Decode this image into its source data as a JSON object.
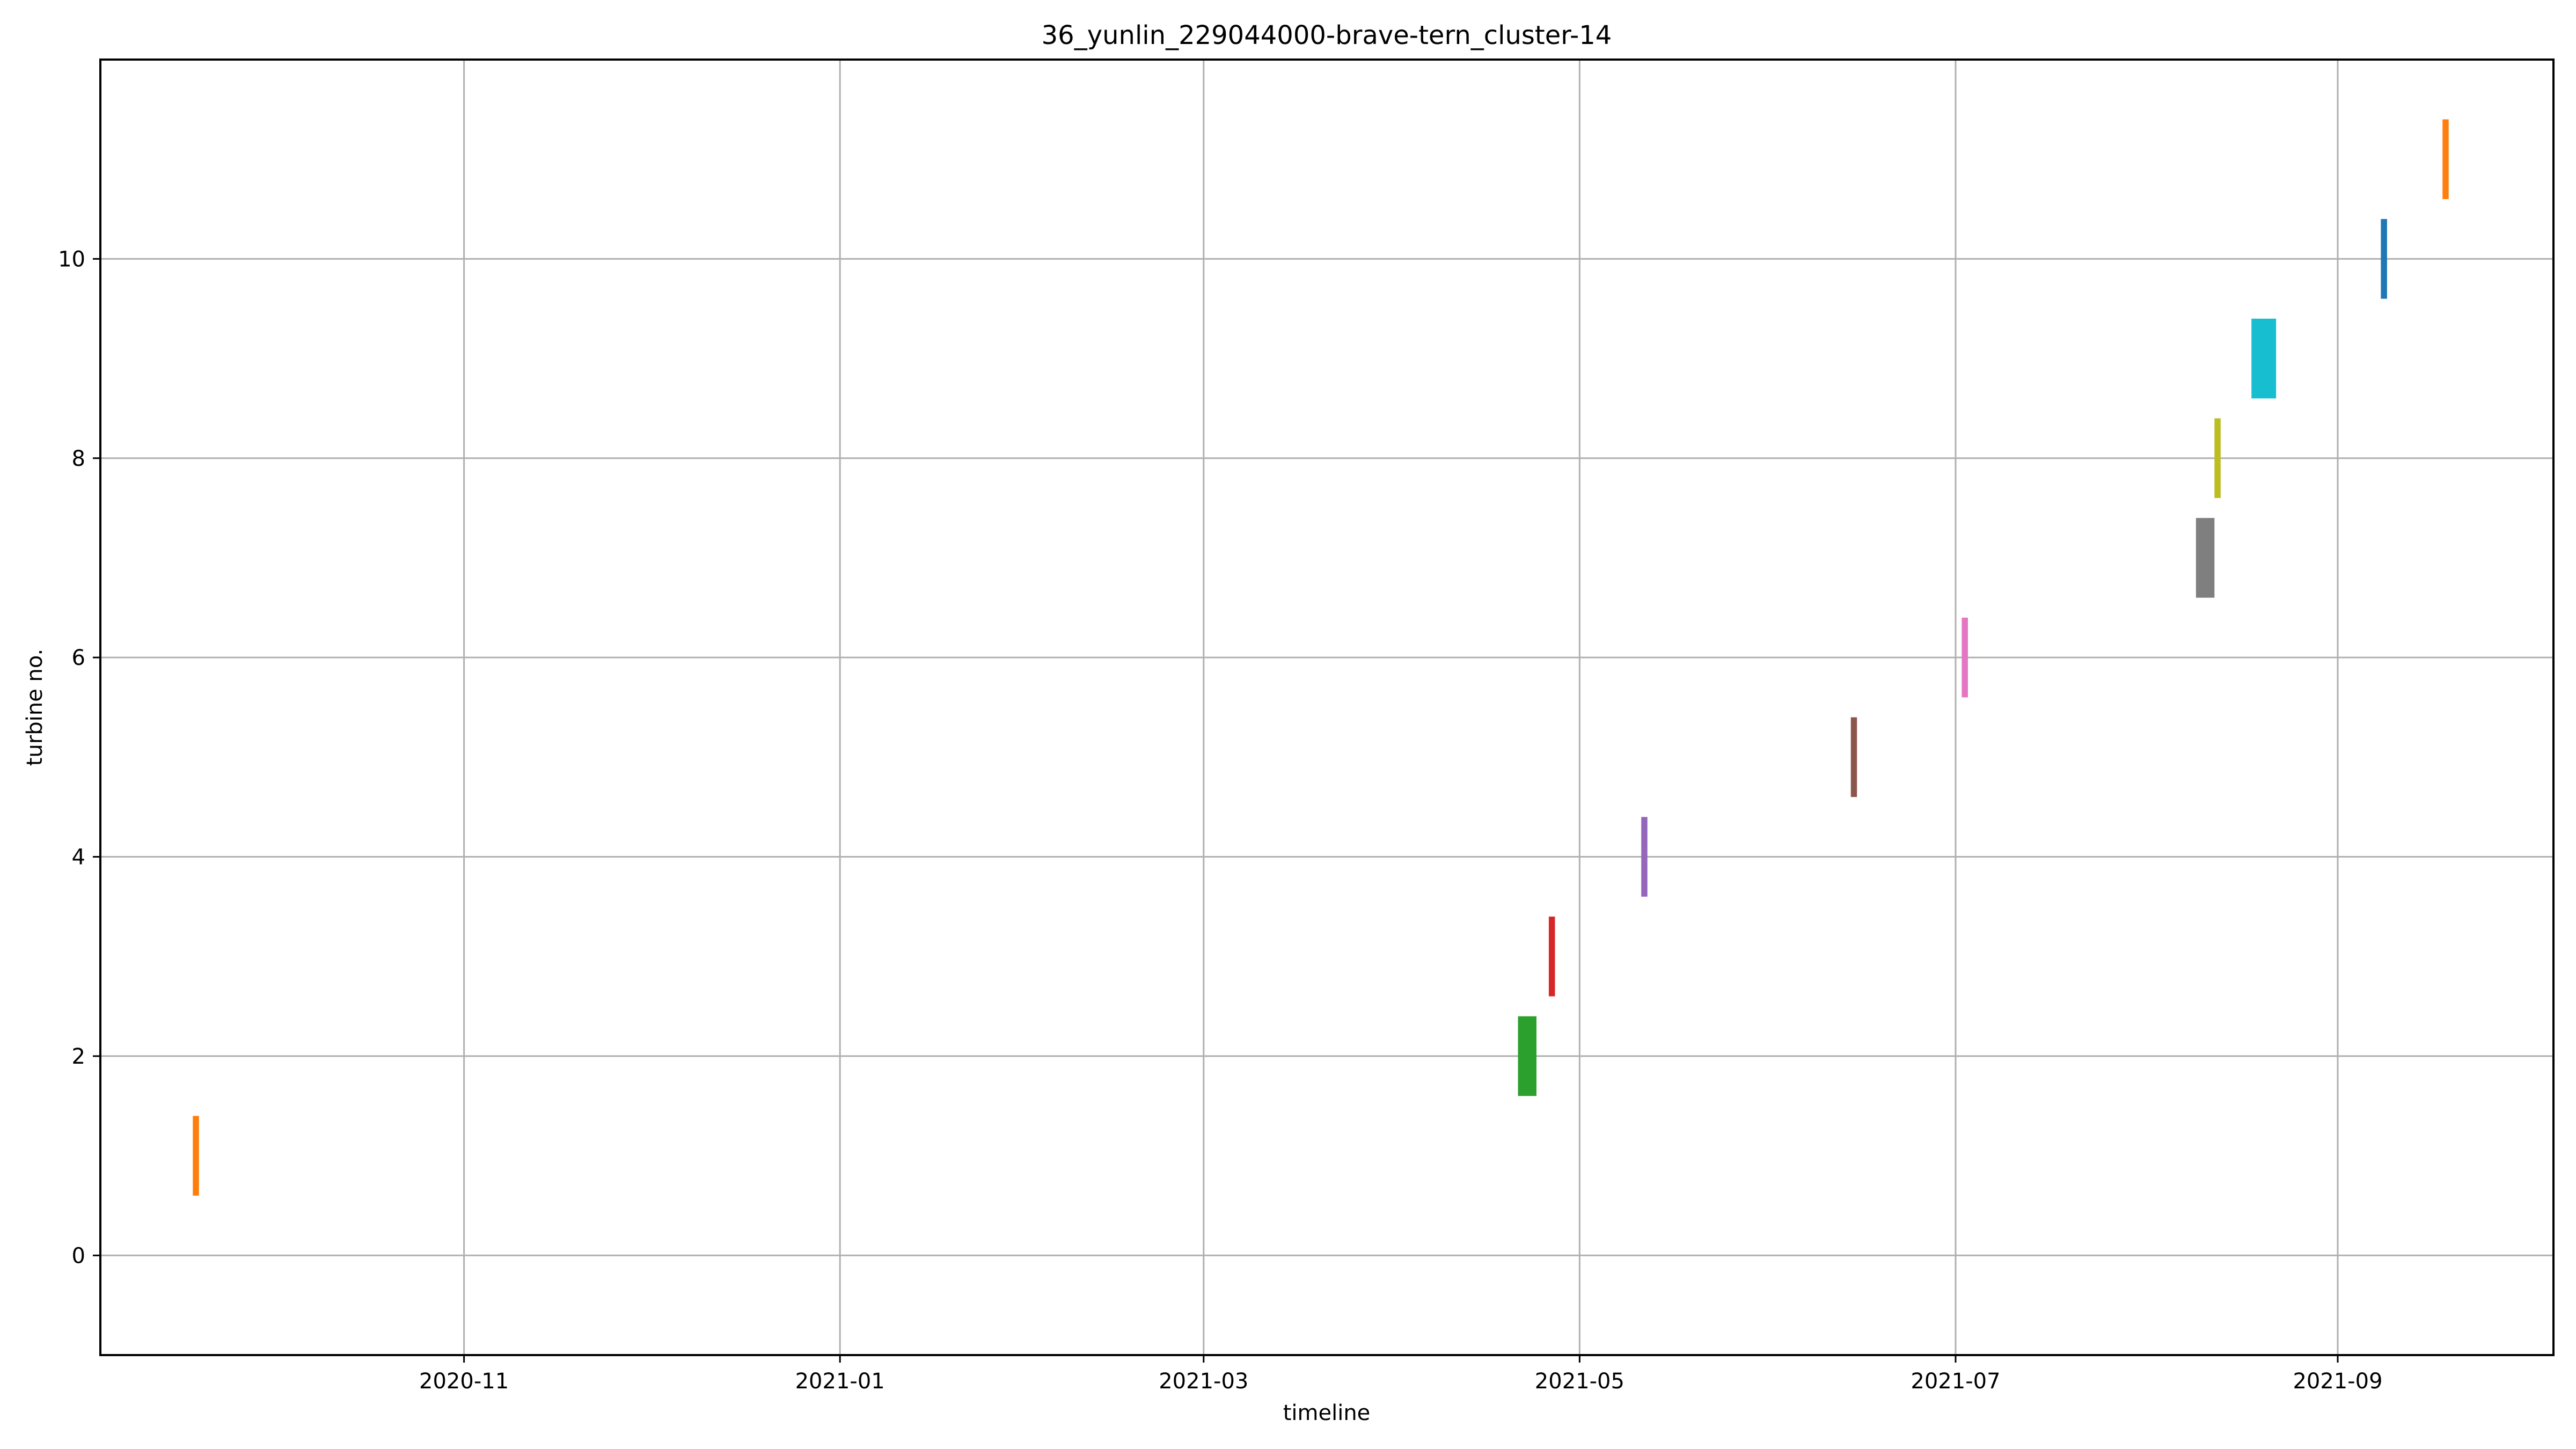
{
  "chart_data": {
    "type": "bar",
    "orientation": "vertical-spans",
    "title": "36_yunlin_229044000-brave-tern_cluster-14",
    "xlabel": "timeline",
    "ylabel": "turbine no.",
    "xlim": [
      "2020-09-03",
      "2021-10-06"
    ],
    "ylim": [
      -1,
      12
    ],
    "x_ticks": [
      "2020-11",
      "2021-01",
      "2021-03",
      "2021-05",
      "2021-07",
      "2021-09"
    ],
    "y_ticks": [
      0,
      2,
      4,
      6,
      8,
      10
    ],
    "grid": true,
    "legend": "none",
    "series": [
      {
        "turbine": 1,
        "start": "2020-09-18",
        "end": "2020-09-19",
        "color": "#ff7f0e"
      },
      {
        "turbine": 2,
        "start": "2021-04-21",
        "end": "2021-04-24",
        "color": "#2ca02c"
      },
      {
        "turbine": 3,
        "start": "2021-04-26",
        "end": "2021-04-27",
        "color": "#d62728"
      },
      {
        "turbine": 4,
        "start": "2021-05-11",
        "end": "2021-05-12",
        "color": "#9467bd"
      },
      {
        "turbine": 5,
        "start": "2021-06-14",
        "end": "2021-06-15",
        "color": "#8c564b"
      },
      {
        "turbine": 6,
        "start": "2021-07-02",
        "end": "2021-07-03",
        "color": "#e377c2"
      },
      {
        "turbine": 7,
        "start": "2021-08-09",
        "end": "2021-08-12",
        "color": "#7f7f7f"
      },
      {
        "turbine": 8,
        "start": "2021-08-12",
        "end": "2021-08-13",
        "color": "#bcbd22"
      },
      {
        "turbine": 9,
        "start": "2021-08-18",
        "end": "2021-08-22",
        "color": "#17becf"
      },
      {
        "turbine": 10,
        "start": "2021-09-08",
        "end": "2021-09-09",
        "color": "#1f77b4"
      },
      {
        "turbine": 11,
        "start": "2021-09-18",
        "end": "2021-09-19",
        "color": "#ff7f0e"
      }
    ]
  }
}
